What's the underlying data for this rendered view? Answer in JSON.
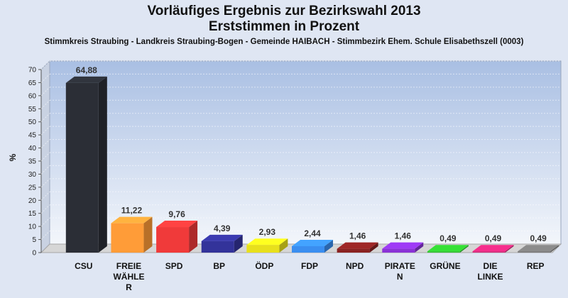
{
  "header": {
    "title": "Vorläufiges Ergebnis zur Bezirkswahl 2013",
    "subtitle": "Erststimmen in Prozent",
    "location": "Stimmkreis Straubing - Landkreis Straubing-Bogen - Gemeinde HAIBACH - Stimmbezirk Ehem. Schule Elisabethszell (0003)"
  },
  "chart_data": {
    "type": "bar",
    "title": "Vorläufiges Ergebnis zur Bezirkswahl 2013",
    "ylabel": "%",
    "xlabel": "",
    "ylim": [
      0,
      70
    ],
    "yticks": [
      0,
      5,
      10,
      15,
      20,
      25,
      30,
      35,
      40,
      45,
      50,
      55,
      60,
      65,
      70
    ],
    "grid": true,
    "categories": [
      [
        "CSU"
      ],
      [
        "FREIE",
        "WÄHLE",
        "R"
      ],
      [
        "SPD"
      ],
      [
        "BP"
      ],
      [
        "ÖDP"
      ],
      [
        "FDP"
      ],
      [
        "NPD"
      ],
      [
        "PIRATE",
        "N"
      ],
      [
        "GRÜNE"
      ],
      [
        "DIE",
        "LINKE"
      ],
      [
        "REP"
      ]
    ],
    "values": [
      64.88,
      11.22,
      9.76,
      4.39,
      2.93,
      2.44,
      1.46,
      1.46,
      0.49,
      0.49,
      0.49
    ],
    "value_labels": [
      "64,88",
      "11,22",
      "9,76",
      "4,39",
      "2,93",
      "2,44",
      "1,46",
      "1,46",
      "0,49",
      "0,49",
      "0,49"
    ],
    "colors": [
      "#2b2e36",
      "#ff9c38",
      "#f03a3a",
      "#33339a",
      "#e8e01c",
      "#3a8ef0",
      "#8a2222",
      "#8a33d6",
      "#2fc42f",
      "#d6287a",
      "#7a7a7a"
    ]
  }
}
